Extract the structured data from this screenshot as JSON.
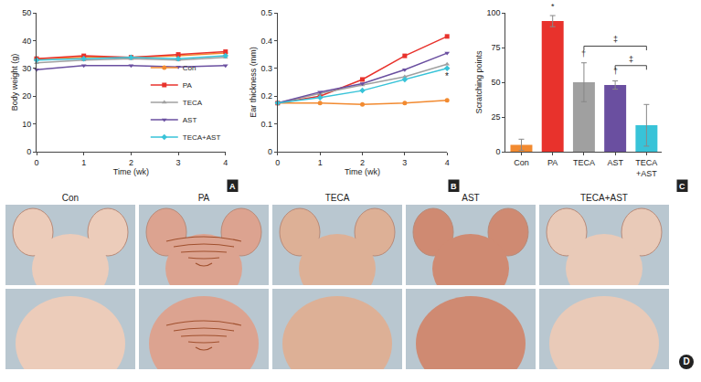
{
  "chart_data": [
    {
      "type": "line",
      "x_label": "Time (wk)",
      "y_label": "Body weight (g)",
      "x": [
        0,
        1,
        2,
        3,
        4
      ],
      "series": [
        {
          "name": "Con",
          "color": "#f28a30",
          "marker": "circle",
          "values": [
            33.5,
            34,
            34,
            34.5,
            35.5
          ]
        },
        {
          "name": "PA",
          "color": "#e8322c",
          "marker": "square",
          "values": [
            33.5,
            34.5,
            34,
            35,
            36
          ]
        },
        {
          "name": "TECA",
          "color": "#a0a0a0",
          "marker": "triangle-up",
          "values": [
            32,
            33,
            33.5,
            33,
            34
          ]
        },
        {
          "name": "AST",
          "color": "#6a4fa0",
          "marker": "triangle-down",
          "values": [
            29.5,
            31,
            31,
            30.5,
            31
          ]
        },
        {
          "name": "TECA+AST",
          "color": "#38c3d8",
          "marker": "diamond",
          "values": [
            33,
            33.5,
            34,
            33.5,
            34.5
          ]
        }
      ],
      "xlim": [
        0,
        4
      ],
      "xticks": [
        0,
        1,
        2,
        3,
        4
      ],
      "ylim": [
        0,
        50
      ],
      "yticks": [
        0,
        10,
        20,
        30,
        40,
        50
      ],
      "grid": false,
      "legend": "lower right",
      "annotations": [
        {
          "text": "A"
        }
      ]
    },
    {
      "type": "line",
      "x_label": "Time (wk)",
      "y_label": "Ear thickness (mm)",
      "x": [
        0,
        1,
        2,
        3,
        4
      ],
      "series": [
        {
          "name": "Con",
          "color": "#f28a30",
          "marker": "circle",
          "values": [
            0.175,
            0.175,
            0.17,
            0.175,
            0.185
          ]
        },
        {
          "name": "PA",
          "color": "#e8322c",
          "marker": "square",
          "values": [
            0.175,
            0.2,
            0.26,
            0.345,
            0.415
          ]
        },
        {
          "name": "TECA",
          "color": "#a0a0a0",
          "marker": "triangle-up",
          "values": [
            0.175,
            0.21,
            0.24,
            0.27,
            0.315
          ]
        },
        {
          "name": "AST",
          "color": "#6a4fa0",
          "marker": "triangle-down",
          "values": [
            0.175,
            0.215,
            0.245,
            0.295,
            0.355
          ]
        },
        {
          "name": "TECA+AST",
          "color": "#38c3d8",
          "marker": "diamond",
          "values": [
            0.175,
            0.195,
            0.22,
            0.26,
            0.3
          ]
        }
      ],
      "xlim": [
        0,
        4
      ],
      "xticks": [
        0,
        1,
        2,
        3,
        4
      ],
      "ylim": [
        0,
        0.5
      ],
      "yticks": [
        0,
        0.1,
        0.2,
        0.3,
        0.4,
        0.5
      ],
      "grid": false,
      "annotations": [
        {
          "text": "B"
        },
        {
          "text": "*",
          "x": 4,
          "y": 0.27
        }
      ]
    },
    {
      "type": "bar",
      "y_label": "Scratching points",
      "categories": [
        "Con",
        "PA",
        "TECA",
        "AST",
        "TECA+AST"
      ],
      "values": [
        5,
        94,
        50,
        48,
        19
      ],
      "errors": [
        4,
        4,
        14,
        3,
        15
      ],
      "colors": [
        "#f28a30",
        "#e8322c",
        "#a0a0a0",
        "#6a4fa0",
        "#38c3d8"
      ],
      "ylim": [
        0,
        100
      ],
      "yticks": [
        0,
        25,
        50,
        75,
        100
      ],
      "grid": false,
      "annotations": [
        {
          "text": "C"
        },
        {
          "text": "*",
          "category": "PA"
        },
        {
          "text": "†",
          "category": "TECA"
        },
        {
          "text": "†",
          "category": "AST"
        },
        {
          "text": "‡",
          "from": "AST",
          "to": "TECA+AST"
        },
        {
          "text": "‡",
          "from": "TECA",
          "to": "TECA+AST"
        }
      ]
    }
  ],
  "photo_panel": {
    "label": "D",
    "columns": [
      "Con",
      "PA",
      "TECA",
      "AST",
      "TECA+AST"
    ],
    "rows": 2
  }
}
